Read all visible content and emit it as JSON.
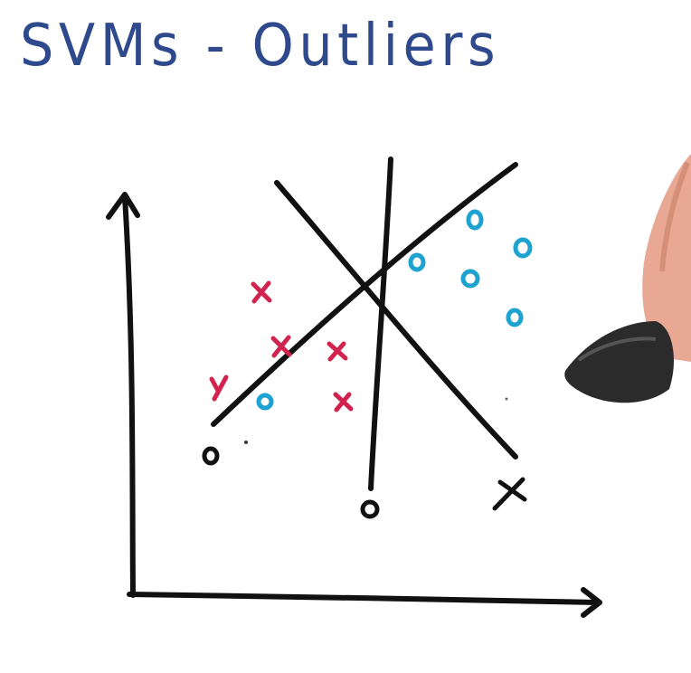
{
  "title": "SVMs - Outliers",
  "colors": {
    "title": "#2f4a8c",
    "ink": "#111111",
    "class_x": "#d2234e",
    "class_o": "#1ea3d0",
    "skin": "#e8a893",
    "pen": "#2b2b2b"
  },
  "icons": {
    "x_mark": "x-mark-icon",
    "o_mark": "o-mark-icon",
    "hand": "hand-holding-marker"
  }
}
